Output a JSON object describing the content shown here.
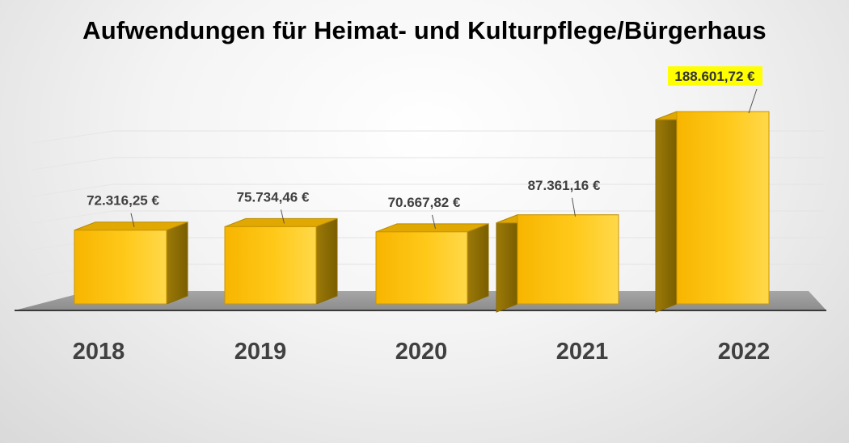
{
  "chart_data": {
    "type": "bar",
    "title": "Aufwendungen für Heimat- und Kulturpflege/Bürgerhaus",
    "xlabel": "",
    "ylabel": "",
    "categories": [
      "2018",
      "2019",
      "2020",
      "2021",
      "2022"
    ],
    "values": [
      72316.25,
      75734.46,
      70667.82,
      87361.16,
      188601.72
    ],
    "data_labels": [
      "72.316,25 €",
      "75.734,46 €",
      "70.667,82 €",
      "87.361,16 €",
      "188.601,72 €"
    ],
    "highlighted_label": "188.601,72 €",
    "highlight_color": "#ffff00",
    "bar_color": "#ffc000",
    "ylim": [
      0,
      200000
    ],
    "grid": true,
    "legend": "none",
    "style": "3d-column"
  }
}
